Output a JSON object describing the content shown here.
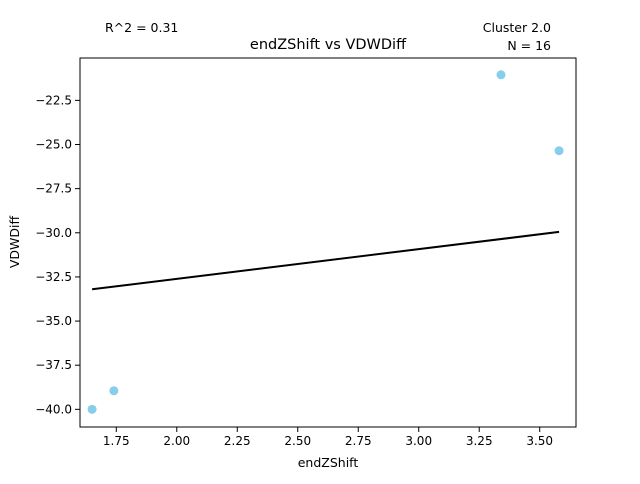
{
  "chart_data": {
    "type": "scatter",
    "title": "endZShift vs VDWDiff",
    "xlabel": "endZShift",
    "ylabel": "VDWDiff",
    "xlim": [
      1.6,
      3.65
    ],
    "ylim": [
      -41.0,
      -20.1
    ],
    "xticks": [
      1.75,
      2.0,
      2.25,
      2.5,
      2.75,
      3.0,
      3.25,
      3.5
    ],
    "xtick_labels": [
      "1.75",
      "2.00",
      "2.25",
      "2.50",
      "2.75",
      "3.00",
      "3.25",
      "3.50"
    ],
    "yticks": [
      -22.5,
      -25.0,
      -27.5,
      -30.0,
      -32.5,
      -35.0,
      -37.5,
      -40.0
    ],
    "ytick_labels": [
      "−22.5",
      "−25.0",
      "−27.5",
      "−30.0",
      "−32.5",
      "−35.0",
      "−37.5",
      "−40.0"
    ],
    "points": [
      {
        "x": 1.65,
        "y": -40.0
      },
      {
        "x": 1.74,
        "y": -38.95
      },
      {
        "x": 3.34,
        "y": -21.05
      },
      {
        "x": 3.58,
        "y": -25.35
      }
    ],
    "fit_line": {
      "x": [
        1.65,
        3.58
      ],
      "y": [
        -33.2,
        -29.95
      ]
    },
    "point_color": "#87CEEB",
    "line_color": "#000000",
    "grid": false,
    "annotations": {
      "r2": "R^2 = 0.31",
      "cluster": "Cluster 2.0",
      "n": "N = 16"
    }
  }
}
